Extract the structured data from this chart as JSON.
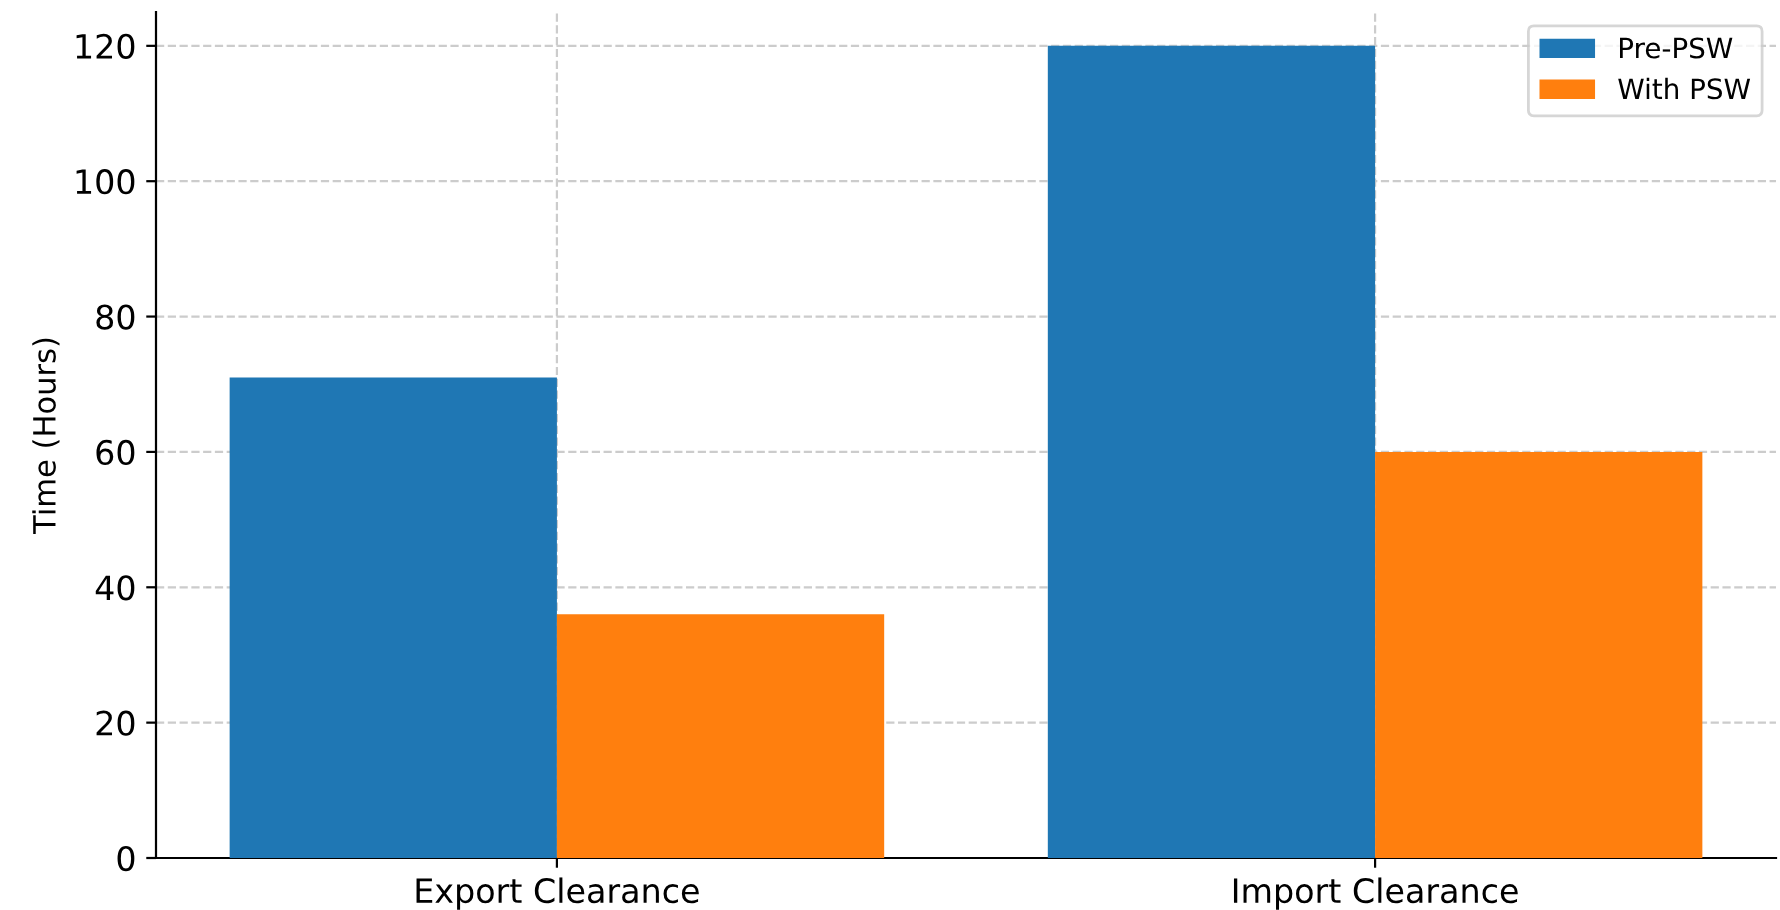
{
  "chart_data": {
    "type": "bar",
    "ylabel": "Time (Hours)",
    "categories": [
      "Export Clearance",
      "Import Clearance"
    ],
    "series": [
      {
        "name": "Pre-PSW",
        "color": "#1f77b4",
        "values": [
          71,
          120
        ]
      },
      {
        "name": "With PSW",
        "color": "#ff7f0e",
        "values": [
          36,
          60
        ]
      }
    ],
    "ylim": [
      0,
      125
    ],
    "yticks": [
      0,
      20,
      40,
      60,
      80,
      100,
      120
    ],
    "grid": true,
    "legend": "top right"
  }
}
